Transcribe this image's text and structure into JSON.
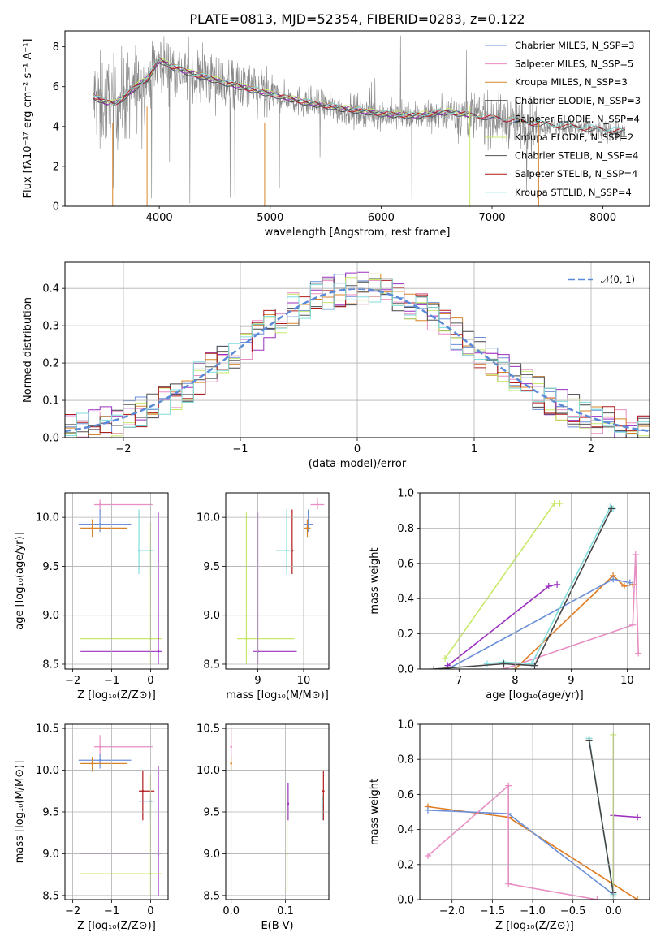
{
  "colors": {
    "chabrier_miles": "#6a8fd8",
    "salpeter_miles": "#e88ec3",
    "kroupa_miles": "#d8852a",
    "chabrier_elodie": "#444444",
    "salpeter_elodie": "#9b2fc0",
    "kroupa_elodie": "#c8e86a",
    "chabrier_stelib": "#555555",
    "salpeter_stelib": "#b01c1c",
    "kroupa_stelib": "#80dede",
    "data": "#888888",
    "normal": "#5b8ad8",
    "line_chabrier": "#6a8fd8",
    "line_salpeter": "#e88ec3",
    "line_kroupa": "#e07b20",
    "line_purple": "#9b2fc0",
    "line_green": "#c8e86a",
    "line_teal": "#80dede"
  },
  "chart_data": [
    {
      "id": "spectrum",
      "type": "line",
      "title": "PLATE=0813, MJD=52354, FIBERID=0283, z=0.122",
      "xlabel": "wavelength [Angstrom, rest frame]",
      "ylabel": "Flux [fλ10⁻¹⁷ erg cm⁻² s⁻¹ A⁻¹]",
      "xlim": [
        3150,
        8420
      ],
      "ylim": [
        0,
        8.8
      ],
      "xticks": [
        "4000",
        "5000",
        "6000",
        "7000",
        "8000"
      ],
      "yticks": [
        "0",
        "2",
        "4",
        "6",
        "8"
      ],
      "legend_position": "top-right",
      "legend": [
        "Chabrier MILES, N_SSP=3",
        "Salpeter MILES, N_SSP=5",
        "Kroupa MILES, N_SSP=3",
        "Chabrier ELODIE, N_SSP=3",
        "Salpeter ELODIE, N_SSP=4",
        "Kroupa ELODIE, N_SSP=2",
        "Chabrier STELIB, N_SSP=4",
        "Salpeter STELIB, N_SSP=4",
        "Kroupa STELIB, N_SSP=4"
      ],
      "continuum": {
        "x": [
          3400,
          3500,
          3600,
          3700,
          3800,
          3900,
          4000,
          4100,
          4200,
          4300,
          4500,
          4700,
          5000,
          5300,
          5600,
          6000,
          6300,
          6600,
          7000,
          7400,
          7800,
          8200
        ],
        "y": [
          5.5,
          5.2,
          5.1,
          5.5,
          6.0,
          6.4,
          7.3,
          7.0,
          6.8,
          6.6,
          6.3,
          6.0,
          5.6,
          5.2,
          4.9,
          4.6,
          4.5,
          4.7,
          4.4,
          4.1,
          3.9,
          3.7
        ]
      }
    },
    {
      "id": "residuals",
      "type": "histogram",
      "xlabel": "(data-model)/error",
      "ylabel": "Normed distribution",
      "xlim": [
        -2.5,
        2.5
      ],
      "ylim": [
        0,
        0.47
      ],
      "xticks": [
        "−2",
        "−1",
        "0",
        "1",
        "2"
      ],
      "yticks": [
        "0.0",
        "0.1",
        "0.2",
        "0.3",
        "0.4"
      ],
      "legend_position": "top-right",
      "legend": [
        "𝒩(0, 1)"
      ],
      "bin_width": 0.1
    },
    {
      "id": "age_vs_Z",
      "type": "errorbar",
      "xlabel": "Z [log₁₀(Z/Z⊙)]",
      "ylabel": "age  [log₁₀(age/yr)]",
      "xlim": [
        -2.2,
        0.45
      ],
      "ylim": [
        8.45,
        10.25
      ],
      "xticks": [
        "−2",
        "−1",
        "0"
      ],
      "yticks": [
        "8.5",
        "9.0",
        "9.5",
        "10.0"
      ],
      "points": [
        {
          "c": "salpeter_miles",
          "x": -1.3,
          "y": 10.13,
          "xlo": -1.45,
          "xhi": 0.05,
          "ylo": 10.06,
          "yhi": 10.18
        },
        {
          "c": "chabrier_miles",
          "x": -1.3,
          "y": 9.93,
          "xlo": -1.85,
          "xhi": -0.5,
          "ylo": 9.85,
          "yhi": 10.08
        },
        {
          "c": "kroupa_miles",
          "x": -1.5,
          "y": 9.89,
          "xlo": -1.8,
          "xhi": -0.6,
          "ylo": 9.8,
          "yhi": 9.98
        },
        {
          "c": "kroupa_stelib",
          "x": -0.3,
          "y": 9.66,
          "xlo": -0.3,
          "xhi": 0.1,
          "ylo": 9.42,
          "yhi": 10.08
        },
        {
          "c": "kroupa_stelib",
          "x": 0.0,
          "y": 9.66,
          "xlo": -0.3,
          "xhi": 0.1,
          "ylo": 9.42,
          "yhi": 9.7
        },
        {
          "c": "kroupa_elodie",
          "x": 0.0,
          "y": 8.76,
          "xlo": -1.8,
          "xhi": 0.3,
          "ylo": 8.5,
          "yhi": 9.95
        },
        {
          "c": "salpeter_elodie",
          "x": 0.2,
          "y": 8.63,
          "xlo": -1.8,
          "xhi": 0.3,
          "ylo": 8.5,
          "yhi": 10.05
        }
      ]
    },
    {
      "id": "age_vs_mass",
      "type": "errorbar",
      "xlabel": "mass [log₁₀(M/M⊙)]",
      "ylabel": "",
      "xlim": [
        8.3,
        10.55
      ],
      "ylim": [
        8.45,
        10.25
      ],
      "xticks": [
        "9",
        "10"
      ],
      "yticks": [
        "8.5",
        "9.0",
        "9.5",
        "10.0"
      ],
      "points": [
        {
          "c": "salpeter_miles",
          "x": 10.3,
          "y": 10.13,
          "xlo": 10.15,
          "xhi": 10.45,
          "ylo": 10.08,
          "yhi": 10.2
        },
        {
          "c": "chabrier_miles",
          "x": 10.1,
          "y": 9.93,
          "xlo": 10.0,
          "xhi": 10.2,
          "ylo": 9.85,
          "yhi": 10.08
        },
        {
          "c": "kroupa_miles",
          "x": 10.08,
          "y": 9.89,
          "xlo": 10.0,
          "xhi": 10.15,
          "ylo": 9.8,
          "yhi": 9.98
        },
        {
          "c": "salpeter_stelib",
          "x": 9.75,
          "y": 9.66,
          "xlo": 9.4,
          "xhi": 9.78,
          "ylo": 9.42,
          "yhi": 10.08
        },
        {
          "c": "kroupa_stelib",
          "x": 9.63,
          "y": 9.66,
          "xlo": 9.4,
          "xhi": 9.75,
          "ylo": 9.42,
          "yhi": 10.08
        },
        {
          "c": "kroupa_elodie",
          "x": 8.75,
          "y": 8.76,
          "xlo": 8.55,
          "xhi": 9.8,
          "ylo": 8.5,
          "yhi": 10.05
        },
        {
          "c": "salpeter_elodie",
          "x": 9.0,
          "y": 8.63,
          "xlo": 8.9,
          "xhi": 9.85,
          "ylo": 8.5,
          "yhi": 10.05
        }
      ]
    },
    {
      "id": "weight_vs_age",
      "type": "line",
      "xlabel": "age  [log₁₀(age/yr)]",
      "ylabel": "mass weight",
      "xlim": [
        6.3,
        10.4
      ],
      "ylim": [
        0,
        1.0
      ],
      "xticks": [
        "7",
        "8",
        "9",
        "10"
      ],
      "yticks": [
        "0.0",
        "0.2",
        "0.4",
        "0.6",
        "0.8",
        "1.0"
      ],
      "series": [
        {
          "c": "line_kroupa",
          "x": [
            8.0,
            9.75,
            9.95,
            10.1
          ],
          "y": [
            0.0,
            0.53,
            0.47,
            0.48
          ]
        },
        {
          "c": "line_chabrier",
          "x": [
            6.8,
            9.75,
            10.05
          ],
          "y": [
            0.0,
            0.51,
            0.49
          ]
        },
        {
          "c": "line_salpeter",
          "x": [
            7.8,
            10.1,
            10.15,
            10.2
          ],
          "y": [
            0.0,
            0.25,
            0.65,
            0.09
          ]
        },
        {
          "c": "line_purple",
          "x": [
            6.8,
            8.6,
            8.75
          ],
          "y": [
            0.02,
            0.47,
            0.48
          ]
        },
        {
          "c": "line_green",
          "x": [
            6.75,
            8.7,
            8.8
          ],
          "y": [
            0.06,
            0.94,
            0.94
          ]
        },
        {
          "c": "line_teal",
          "x": [
            7.5,
            7.8,
            8.3,
            9.7,
            9.75
          ],
          "y": [
            0.03,
            0.04,
            0.03,
            0.92,
            0.91
          ]
        },
        {
          "c": "chabrier_elodie",
          "x": [
            6.55,
            7.8,
            8.35,
            9.72
          ],
          "y": [
            0.0,
            0.03,
            0.02,
            0.91
          ]
        }
      ]
    },
    {
      "id": "mass_vs_Z",
      "type": "errorbar",
      "xlabel": "Z [log₁₀(Z/Z⊙)]",
      "ylabel": "mass [log₁₀(M/M⊙)]",
      "xlim": [
        -2.2,
        0.45
      ],
      "ylim": [
        8.45,
        10.55
      ],
      "xticks": [
        "−2",
        "−1",
        "0"
      ],
      "yticks": [
        "8.5",
        "9.0",
        "9.5",
        "10.0",
        "10.5"
      ],
      "points": [
        {
          "c": "salpeter_miles",
          "x": -1.3,
          "y": 10.28,
          "xlo": -1.45,
          "xhi": 0.05,
          "ylo": 10.18,
          "yhi": 10.42
        },
        {
          "c": "chabrier_miles",
          "x": -1.3,
          "y": 10.12,
          "xlo": -1.85,
          "xhi": -0.5,
          "ylo": 10.02,
          "yhi": 10.2
        },
        {
          "c": "kroupa_miles",
          "x": -1.5,
          "y": 10.08,
          "xlo": -1.8,
          "xhi": -0.6,
          "ylo": 9.98,
          "yhi": 10.16
        },
        {
          "c": "salpeter_stelib",
          "x": -0.2,
          "y": 9.75,
          "xlo": -0.3,
          "xhi": 0.1,
          "ylo": 9.4,
          "yhi": 10.0
        },
        {
          "c": "chabrier_miles",
          "x": 0.0,
          "y": 9.63,
          "xlo": -0.3,
          "xhi": 0.1,
          "ylo": 9.4,
          "yhi": 9.7
        },
        {
          "c": "salpeter_elodie",
          "x": 0.2,
          "y": 9.0,
          "xlo": -1.8,
          "xhi": 0.3,
          "ylo": 8.5,
          "yhi": 10.05
        },
        {
          "c": "kroupa_elodie",
          "x": 0.0,
          "y": 8.76,
          "xlo": -1.8,
          "xhi": 0.3,
          "ylo": 8.5,
          "yhi": 9.95
        }
      ]
    },
    {
      "id": "mass_vs_ebv",
      "type": "errorbar",
      "xlabel": "E(B-V)",
      "ylabel": "",
      "xlim": [
        -0.01,
        0.18
      ],
      "ylim": [
        8.45,
        10.55
      ],
      "xticks": [
        "0.0",
        "0.1"
      ],
      "yticks": [
        "8.5",
        "9.0",
        "9.5",
        "10.0",
        "10.5"
      ],
      "points": [
        {
          "c": "salpeter_miles",
          "x": 0.0,
          "y": 10.28,
          "ylo": 10.15,
          "yhi": 10.5
        },
        {
          "c": "kroupa_miles",
          "x": 0.0,
          "y": 10.08,
          "ylo": 10.0,
          "yhi": 10.16
        },
        {
          "c": "salpeter_elodie",
          "x": 0.105,
          "y": 9.6,
          "ylo": 9.4,
          "yhi": 9.85
        },
        {
          "c": "kroupa_elodie",
          "x": 0.103,
          "y": 9.0,
          "ylo": 8.55,
          "yhi": 9.75
        },
        {
          "c": "salpeter_stelib",
          "x": 0.17,
          "y": 9.75,
          "ylo": 9.4,
          "yhi": 10.0
        },
        {
          "c": "kroupa_stelib",
          "x": 0.168,
          "y": 9.63,
          "ylo": 9.4,
          "yhi": 9.7
        }
      ]
    },
    {
      "id": "weight_vs_Z",
      "type": "line",
      "xlabel": "Z [log₁₀(Z/Z⊙)]",
      "ylabel": "mass weight",
      "xlim": [
        -2.4,
        0.45
      ],
      "ylim": [
        0,
        1.0
      ],
      "xticks": [
        "−2.0",
        "−1.5",
        "−1.0",
        "−0.5",
        "0.0"
      ],
      "yticks": [
        "0.0",
        "0.2",
        "0.4",
        "0.6",
        "0.8",
        "1.0"
      ],
      "series": [
        {
          "c": "line_kroupa",
          "x": [
            -2.3,
            -1.3,
            0.3
          ],
          "y": [
            0.53,
            0.47,
            0.0
          ]
        },
        {
          "c": "line_chabrier",
          "x": [
            -2.3,
            -1.3,
            0.0
          ],
          "y": [
            0.51,
            0.49,
            0.03
          ]
        },
        {
          "c": "line_salpeter",
          "x": [
            -2.3,
            -1.3,
            -1.3,
            -0.2
          ],
          "y": [
            0.25,
            0.65,
            0.09,
            0.0
          ]
        },
        {
          "c": "line_purple",
          "x": [
            0.0,
            0.0,
            0.3
          ],
          "y": [
            0.0,
            0.48,
            0.47
          ]
        },
        {
          "c": "line_green",
          "x": [
            0.0,
            0.0
          ],
          "y": [
            0.94,
            0.0
          ]
        },
        {
          "c": "line_teal",
          "x": [
            -0.3,
            0.0,
            0.0
          ],
          "y": [
            0.92,
            0.03,
            0.02
          ]
        },
        {
          "c": "chabrier_elodie",
          "x": [
            -0.3,
            0.0
          ],
          "y": [
            0.91,
            0.04
          ]
        }
      ]
    }
  ]
}
